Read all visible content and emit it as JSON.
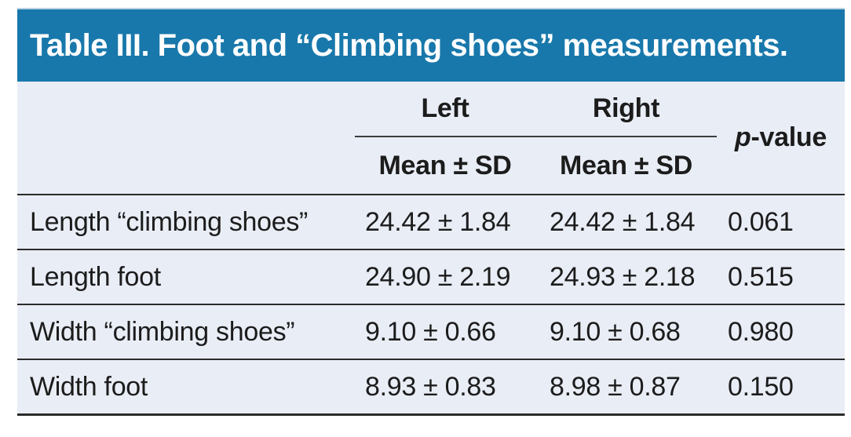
{
  "title": "Table III. Foot and “Climbing shoes” measurements.",
  "colors": {
    "title_bar_bg": "#1878ab",
    "title_text": "#ffffff",
    "table_bg": "#e9edf6",
    "rule_color": "#2b2b2b",
    "body_text": "#1c1c1c"
  },
  "header": {
    "group_left": "Left",
    "group_right": "Right",
    "sub_left": "Mean ± SD",
    "sub_right": "Mean ± SD",
    "pvalue_italic_part": "p",
    "pvalue_rest_part": "-value"
  },
  "rows": [
    {
      "label": "Length “climbing shoes”",
      "left": "24.42 ± 1.84",
      "right": "24.42 ± 1.84",
      "p": "0.061"
    },
    {
      "label": "Length foot",
      "left": "24.90 ± 2.19",
      "right": "24.93 ± 2.18",
      "p": "0.515"
    },
    {
      "label": "Width “climbing shoes”",
      "left": "9.10 ± 0.66",
      "right": "9.10 ± 0.68",
      "p": "0.980"
    },
    {
      "label": "Width foot",
      "left": "8.93 ± 0.83",
      "right": "8.98 ± 0.87",
      "p": "0.150"
    }
  ]
}
